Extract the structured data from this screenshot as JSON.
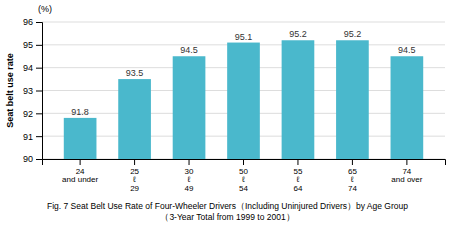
{
  "chart_data": {
    "type": "bar",
    "title": "Fig. 7 Seat Belt Use Rate of Four-Wheeler Drivers（Including Uninjured Drivers）by Age Group",
    "subtitle": "（3-Year Total from 1999 to 2001）",
    "ylabel": "Seat belt use rate",
    "annotations": [
      "(%)"
    ],
    "categories": [
      "24\nand under",
      "25\nℓ\n29",
      "30\nℓ\n49",
      "50\nℓ\n54",
      "55\nℓ\n64",
      "65\nℓ\n74",
      "74\nand over"
    ],
    "values": [
      91.8,
      93.5,
      94.5,
      95.1,
      95.2,
      95.2,
      94.5
    ],
    "color": "#4ab8cc",
    "ylim": [
      90,
      96
    ],
    "yticks": [
      90,
      91,
      92,
      93,
      94,
      95,
      96
    ],
    "grid": true,
    "data_labels": true
  }
}
